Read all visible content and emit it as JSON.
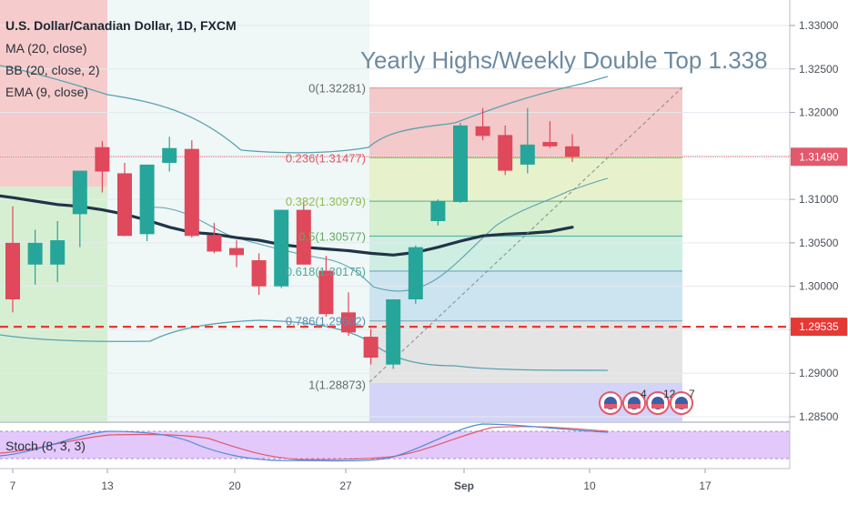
{
  "legend": {
    "symbol": "U.S. Dollar/Canadian Dollar, 1D, FXCM",
    "indicators": [
      "MA (20, close)",
      "BB (20, close, 2)",
      "EMA (9, close)"
    ]
  },
  "annotation": "Yearly Highs/Weekly Double Top 1.338",
  "stoch_label": "Stoch (8, 3, 3)",
  "price_badges": {
    "last": "1.31490",
    "support": "1.29535"
  },
  "colors": {
    "up": "#26a69a",
    "down": "#e0485b",
    "ma": "#1f3447",
    "bb": "#5aa2b0",
    "support_line": "#e53935",
    "last_line": "#e56b6f",
    "stoch_k": "#4f8ad6",
    "stoch_d": "#e2596b",
    "stoch_bg": "#e3c8fb"
  },
  "events": [
    "4",
    "12",
    "7"
  ],
  "chart_data": {
    "type": "candlestick",
    "title": "U.S. Dollar/Canadian Dollar, 1D, FXCM",
    "y_axis": {
      "range": [
        1.285,
        1.3315
      ],
      "ticks": [
        "1.33000",
        "1.32500",
        "1.32000",
        "1.31500",
        "1.31000",
        "1.30500",
        "1.30000",
        "1.29500",
        "1.29000",
        "1.28500"
      ]
    },
    "x_axis": {
      "ticks": [
        "7",
        "13",
        "20",
        "27",
        "Sep",
        "10",
        "17"
      ]
    },
    "candles": [
      {
        "o": 1.305,
        "h": 1.3092,
        "l": 1.297,
        "c": 1.2985
      },
      {
        "o": 1.3025,
        "h": 1.3065,
        "l": 1.3002,
        "c": 1.305
      },
      {
        "o": 1.3025,
        "h": 1.3075,
        "l": 1.3005,
        "c": 1.3053
      },
      {
        "o": 1.3083,
        "h": 1.313,
        "l": 1.3045,
        "c": 1.3133
      },
      {
        "o": 1.316,
        "h": 1.3167,
        "l": 1.3108,
        "c": 1.3132
      },
      {
        "o": 1.313,
        "h": 1.3142,
        "l": 1.3058,
        "c": 1.3058
      },
      {
        "o": 1.306,
        "h": 1.314,
        "l": 1.3052,
        "c": 1.314
      },
      {
        "o": 1.3142,
        "h": 1.3172,
        "l": 1.3132,
        "c": 1.3159
      },
      {
        "o": 1.3158,
        "h": 1.3168,
        "l": 1.3056,
        "c": 1.3058
      },
      {
        "o": 1.3059,
        "h": 1.3073,
        "l": 1.3038,
        "c": 1.304
      },
      {
        "o": 1.3044,
        "h": 1.3053,
        "l": 1.3022,
        "c": 1.3036
      },
      {
        "o": 1.303,
        "h": 1.3038,
        "l": 1.299,
        "c": 1.3
      },
      {
        "o": 1.3,
        "h": 1.3088,
        "l": 1.2998,
        "c": 1.3088
      },
      {
        "o": 1.3088,
        "h": 1.3097,
        "l": 1.3025,
        "c": 1.3025
      },
      {
        "o": 1.3018,
        "h": 1.3035,
        "l": 1.2965,
        "c": 1.2968
      },
      {
        "o": 1.297,
        "h": 1.2993,
        "l": 1.2943,
        "c": 1.2947
      },
      {
        "o": 1.2942,
        "h": 1.2951,
        "l": 1.291,
        "c": 1.2918
      },
      {
        "o": 1.291,
        "h": 1.2985,
        "l": 1.2905,
        "c": 1.2985
      },
      {
        "o": 1.2985,
        "h": 1.3047,
        "l": 1.298,
        "c": 1.3045
      },
      {
        "o": 1.3075,
        "h": 1.31,
        "l": 1.307,
        "c": 1.3098
      },
      {
        "o": 1.3097,
        "h": 1.3188,
        "l": 1.3096,
        "c": 1.3185
      },
      {
        "o": 1.3184,
        "h": 1.3205,
        "l": 1.3168,
        "c": 1.3173
      },
      {
        "o": 1.3174,
        "h": 1.3185,
        "l": 1.3128,
        "c": 1.3133
      },
      {
        "o": 1.314,
        "h": 1.3205,
        "l": 1.313,
        "c": 1.3163
      },
      {
        "o": 1.3166,
        "h": 1.319,
        "l": 1.3159,
        "c": 1.3161
      },
      {
        "o": 1.3161,
        "h": 1.3175,
        "l": 1.3143,
        "c": 1.3149
      }
    ],
    "ma20": [
      1.3102,
      1.3098,
      1.3094,
      1.3092,
      1.3088,
      1.3083,
      1.3076,
      1.3068,
      1.3062,
      1.306,
      1.3056,
      1.3053,
      1.3048,
      1.3045,
      1.3043,
      1.3041,
      1.3038,
      1.3036,
      1.3039,
      1.3045,
      1.3052,
      1.3058,
      1.306,
      1.3061,
      1.3063,
      1.3068
    ],
    "fibonacci": [
      {
        "ratio": "0",
        "price": 1.32281,
        "label": "0(1.32281)"
      },
      {
        "ratio": "0.236",
        "price": 1.31477,
        "label": "0.236(1.31477)"
      },
      {
        "ratio": "0.382",
        "price": 1.30979,
        "label": "0.382(1.30979)"
      },
      {
        "ratio": "0.5",
        "price": 1.30577,
        "label": "0.5(1.30577)"
      },
      {
        "ratio": "0.618",
        "price": 1.30175,
        "label": "0.618(1.30175)"
      },
      {
        "ratio": "0.786",
        "price": 1.29602,
        "label": "0.786(1.29602)"
      },
      {
        "ratio": "1",
        "price": 1.28873,
        "label": "1(1.28873)"
      }
    ],
    "support_level": 1.29535,
    "last_price": 1.3149
  }
}
